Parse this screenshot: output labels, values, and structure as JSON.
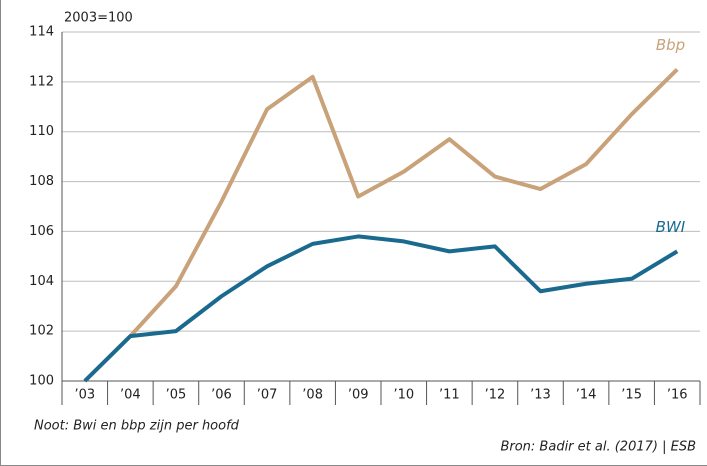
{
  "chart_data": {
    "type": "line",
    "y_axis_label": "2003=100",
    "categories": [
      "’03",
      "’04",
      "’05",
      "’06",
      "’07",
      "’08",
      "’09",
      "’10",
      "’11",
      "’12",
      "’13",
      "’14",
      "’15",
      "’16"
    ],
    "series": [
      {
        "name": "Bbp",
        "color": "#c9a27a",
        "values": [
          100,
          101.8,
          103.8,
          107.2,
          110.9,
          112.2,
          107.4,
          108.4,
          109.7,
          108.2,
          107.7,
          108.7,
          110.7,
          112.5
        ]
      },
      {
        "name": "BWI",
        "color": "#1a6a8f",
        "values": [
          100,
          101.8,
          102.0,
          103.4,
          104.6,
          105.5,
          105.8,
          105.6,
          105.2,
          105.4,
          103.6,
          103.9,
          104.1,
          105.2
        ]
      }
    ],
    "ylim": [
      100,
      114
    ],
    "yticks": [
      100,
      102,
      104,
      106,
      108,
      110,
      112,
      114
    ],
    "grid": true,
    "note": "Noot: Bwi en bbp zijn per hoofd",
    "source": "Bron: Badir et al. (2017) | ESB"
  }
}
